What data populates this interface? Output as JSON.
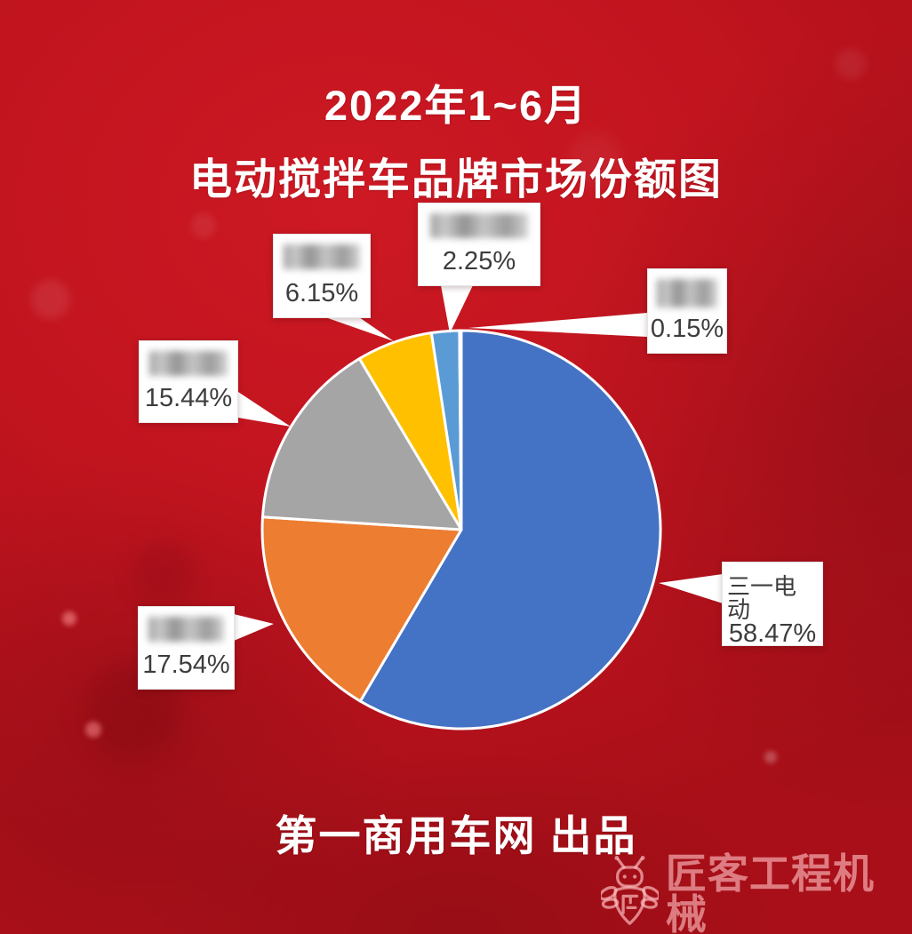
{
  "header": {
    "title_line1": "2022年1~6月",
    "title_line2": "电动搅拌车品牌市场份额图"
  },
  "footer": {
    "credit": "第一商用车网 出品"
  },
  "watermark": {
    "brand": "匠客工程机械",
    "icon": "bee-logo-icon"
  },
  "chart_data": {
    "type": "pie",
    "title": "2022年1~6月 电动搅拌车品牌市场份额图",
    "unit": "percent",
    "start_angle_deg": 0,
    "direction": "clockwise",
    "legend_position": "none",
    "labels_style": "white callout boxes with leader wedges; all brand names except 三一电动 are blurred out",
    "slices": [
      {
        "label": "三一电动",
        "value": 58.47,
        "color": "#4472C4",
        "label_redacted": false
      },
      {
        "label": "",
        "value": 17.54,
        "color": "#ED7D31",
        "label_redacted": true
      },
      {
        "label": "",
        "value": 15.44,
        "color": "#A5A5A5",
        "label_redacted": true
      },
      {
        "label": "",
        "value": 6.15,
        "color": "#FFC000",
        "label_redacted": true
      },
      {
        "label": "",
        "value": 2.25,
        "color": "#5B9BD5",
        "label_redacted": true
      },
      {
        "label": "",
        "value": 0.15,
        "color": "#70AD47",
        "label_redacted": true
      }
    ]
  },
  "callouts": [
    {
      "percent": "2.25%",
      "name": "",
      "name_redacted": true
    },
    {
      "percent": "6.15%",
      "name": "",
      "name_redacted": true
    },
    {
      "percent": "0.15%",
      "name": "",
      "name_redacted": true
    },
    {
      "percent": "15.44%",
      "name": "",
      "name_redacted": true
    },
    {
      "percent": "17.54%",
      "name": "",
      "name_redacted": true
    },
    {
      "percent": "58.47%",
      "name": "三一电动",
      "name_redacted": false
    }
  ],
  "colors": {
    "background_red": "#c1141f",
    "label_text": "#3d3d3d",
    "slice_border": "#ffffff"
  }
}
